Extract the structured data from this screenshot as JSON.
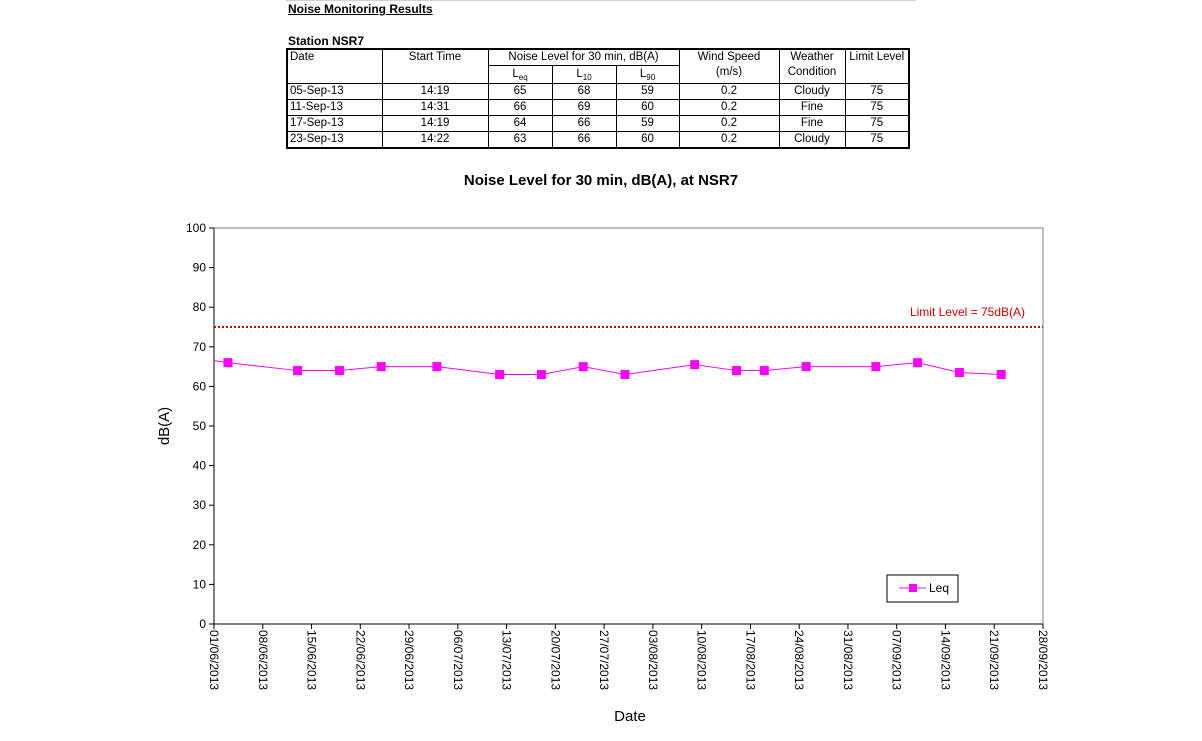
{
  "report": {
    "title": "Noise Monitoring Results",
    "station": "Station NSR7",
    "headers": {
      "date": "Date",
      "start_time": "Start Time",
      "noise_level": "Noise Level for 30 min, dB(A)",
      "leq_main": "L",
      "leq_sub": "eq",
      "l10_main": "L",
      "l10_sub": "10",
      "l90_main": "L",
      "l90_sub": "90",
      "wind_speed": "Wind Speed",
      "wind_unit": "(m/s)",
      "weather": "Weather",
      "condition": "Condition",
      "limit": "Limit Level"
    },
    "rows": [
      {
        "date": "05-Sep-13",
        "time": "14:19",
        "leq": "65",
        "l10": "68",
        "l90": "59",
        "wind": "0.2",
        "weather": "Cloudy",
        "limit": "75"
      },
      {
        "date": "11-Sep-13",
        "time": "14:31",
        "leq": "66",
        "l10": "69",
        "l90": "60",
        "wind": "0.2",
        "weather": "Fine",
        "limit": "75"
      },
      {
        "date": "17-Sep-13",
        "time": "14:19",
        "leq": "64",
        "l10": "66",
        "l90": "59",
        "wind": "0.2",
        "weather": "Fine",
        "limit": "75"
      },
      {
        "date": "23-Sep-13",
        "time": "14:22",
        "leq": "63",
        "l10": "66",
        "l90": "60",
        "wind": "0.2",
        "weather": "Cloudy",
        "limit": "75"
      }
    ]
  },
  "chart_data": {
    "type": "line",
    "title": "Noise Level for 30 min, dB(A), at NSR7",
    "xlabel": "Date",
    "ylabel": "dB(A)",
    "xlim": [
      "2013-06-01",
      "2013-09-28"
    ],
    "ylim": [
      0,
      100
    ],
    "yticks": [
      0,
      10,
      20,
      30,
      40,
      50,
      60,
      70,
      80,
      90,
      100
    ],
    "xtick_labels": [
      "01/06/2013",
      "08/06/2013",
      "15/06/2013",
      "22/06/2013",
      "29/06/2013",
      "06/07/2013",
      "13/07/2013",
      "20/07/2013",
      "27/07/2013",
      "03/08/2013",
      "10/08/2013",
      "17/08/2013",
      "24/08/2013",
      "31/08/2013",
      "07/09/2013",
      "14/09/2013",
      "21/09/2013",
      "28/09/2013"
    ],
    "xtick_dates": [
      "2013-06-01",
      "2013-06-08",
      "2013-06-15",
      "2013-06-22",
      "2013-06-29",
      "2013-07-06",
      "2013-07-13",
      "2013-07-20",
      "2013-07-27",
      "2013-08-03",
      "2013-08-10",
      "2013-08-17",
      "2013-08-24",
      "2013-08-31",
      "2013-09-07",
      "2013-09-14",
      "2013-09-21",
      "2013-09-28"
    ],
    "series": [
      {
        "name": "Leq",
        "color": "#ff00ff",
        "marker": "square",
        "x": [
          "2013-06-03",
          "2013-06-13",
          "2013-06-19",
          "2013-06-25",
          "2013-07-03",
          "2013-07-12",
          "2013-07-18",
          "2013-07-24",
          "2013-07-30",
          "2013-08-09",
          "2013-08-15",
          "2013-08-19",
          "2013-08-25",
          "2013-09-04",
          "2013-09-10",
          "2013-09-16",
          "2013-09-22"
        ],
        "y": [
          66,
          64,
          64,
          65,
          65,
          63,
          63,
          65,
          63,
          65.5,
          64,
          64,
          65,
          65,
          66,
          63.5,
          63
        ]
      }
    ],
    "limit_line": {
      "value": 75,
      "label": "Limit Level  = 75dB(A)",
      "color": "#cc0000",
      "style": "dotted"
    },
    "legend": {
      "position": "bottom-right",
      "entries": [
        "Leq"
      ]
    },
    "grid": false
  }
}
